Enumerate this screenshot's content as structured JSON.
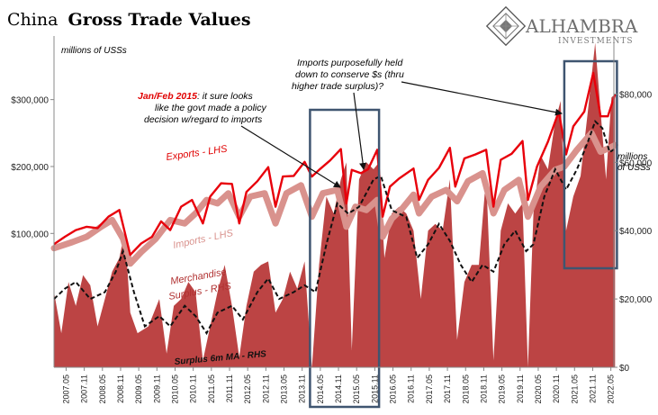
{
  "header": {
    "title_prefix": "China",
    "title_main": "Gross Trade Values",
    "title_prefix_color": "#1f2a6b",
    "title_main_color": "#e00000"
  },
  "brand": {
    "name": "ALHAMBRA",
    "tagline": "INVESTMENTS",
    "logo_icon": "diamond-lattice-icon"
  },
  "annotations": {
    "units_left": "millions of USSs",
    "units_right_line1": "millions",
    "units_right_line2": "of USSs",
    "jan_feb_bold": "Jan/Feb 2015",
    "jan_feb_rest1": ": it sure looks",
    "jan_feb_rest2": "like the govt made a policy",
    "jan_feb_rest3": "decision w/regard to imports",
    "imports_held_line1": "Imports purposefully held",
    "imports_held_line2": "down to conserve $s (thru",
    "imports_held_line3": "higher trade surplus)?",
    "exports_label": "Exports - LHS",
    "imports_label": "Imports - LHS",
    "merch_line1": "Merchandise",
    "merch_line2": "Surplus - RHS",
    "surplus_ma_label": "Surplus 6m MA - RHS"
  },
  "chart_data": {
    "type": "line",
    "x_tick_labels": [
      "2007.05",
      "2007.11",
      "2008.05",
      "2008.11",
      "2009.05",
      "2009.11",
      "2010.05",
      "2010.11",
      "2011.05",
      "2011.11",
      "2012.05",
      "2012.11",
      "2013.05",
      "2013.11",
      "2014.05",
      "2014.11",
      "2015.05",
      "2015.11",
      "2016.05",
      "2016.11",
      "2017.05",
      "2017.11",
      "2018.05",
      "2018.11",
      "2019.05",
      "2019.11",
      "2020.05",
      "2020.11",
      "2021.05",
      "2021.11",
      "2022.05"
    ],
    "x_range": [
      "2007.01",
      "2022.06"
    ],
    "y_left": {
      "label": "millions of USSs",
      "ticks": [
        100000,
        200000,
        300000
      ],
      "tick_labels": [
        "$100,000",
        "$200,000",
        "$300,000"
      ],
      "range": [
        -100000,
        395000
      ]
    },
    "y_right": {
      "label": "millions of USSs",
      "ticks": [
        0,
        20000,
        40000,
        60000,
        80000
      ],
      "tick_labels": [
        "$0",
        "$20,000",
        "$40,000",
        "$60,000",
        "$80,000"
      ],
      "range": [
        0,
        97000
      ]
    },
    "series": [
      {
        "name": "Exports - LHS",
        "axis": "left",
        "color": "#e8000b",
        "style": "line",
        "points": [
          [
            2007.0,
            84000
          ],
          [
            2007.3,
            95000
          ],
          [
            2007.6,
            105000
          ],
          [
            2007.9,
            110000
          ],
          [
            2008.2,
            108000
          ],
          [
            2008.5,
            125000
          ],
          [
            2008.8,
            135000
          ],
          [
            2009.1,
            68000
          ],
          [
            2009.4,
            85000
          ],
          [
            2009.7,
            95000
          ],
          [
            2009.95,
            118000
          ],
          [
            2010.2,
            105000
          ],
          [
            2010.5,
            140000
          ],
          [
            2010.8,
            150000
          ],
          [
            2011.1,
            115000
          ],
          [
            2011.3,
            155000
          ],
          [
            2011.6,
            175000
          ],
          [
            2011.9,
            174000
          ],
          [
            2012.1,
            115000
          ],
          [
            2012.3,
            162000
          ],
          [
            2012.6,
            178000
          ],
          [
            2012.9,
            199000
          ],
          [
            2013.1,
            140000
          ],
          [
            2013.3,
            185000
          ],
          [
            2013.6,
            186000
          ],
          [
            2013.9,
            207000
          ],
          [
            2014.1,
            185000
          ],
          [
            2014.3,
            195000
          ],
          [
            2014.6,
            209000
          ],
          [
            2014.9,
            226000
          ],
          [
            2015.05,
            145000
          ],
          [
            2015.2,
            195000
          ],
          [
            2015.45,
            190000
          ],
          [
            2015.65,
            196000
          ],
          [
            2015.9,
            225000
          ],
          [
            2016.05,
            125000
          ],
          [
            2016.25,
            170000
          ],
          [
            2016.5,
            182000
          ],
          [
            2016.9,
            197000
          ],
          [
            2017.05,
            150000
          ],
          [
            2017.3,
            180000
          ],
          [
            2017.6,
            198000
          ],
          [
            2017.9,
            228000
          ],
          [
            2018.05,
            170000
          ],
          [
            2018.3,
            212000
          ],
          [
            2018.6,
            218000
          ],
          [
            2018.9,
            225000
          ],
          [
            2019.1,
            140000
          ],
          [
            2019.3,
            210000
          ],
          [
            2019.6,
            219000
          ],
          [
            2019.9,
            238000
          ],
          [
            2020.05,
            150000
          ],
          [
            2020.3,
            200000
          ],
          [
            2020.6,
            237000
          ],
          [
            2020.9,
            282000
          ],
          [
            2021.1,
            218000
          ],
          [
            2021.3,
            260000
          ],
          [
            2021.6,
            282000
          ],
          [
            2021.85,
            340000
          ],
          [
            2022.05,
            275000
          ],
          [
            2022.25,
            275000
          ],
          [
            2022.45,
            308000
          ]
        ]
      },
      {
        "name": "Imports - LHS",
        "axis": "left",
        "color": "#d9928d",
        "style": "thick",
        "points": [
          [
            2007.0,
            78000
          ],
          [
            2007.5,
            87000
          ],
          [
            2007.9,
            95000
          ],
          [
            2008.3,
            110000
          ],
          [
            2008.6,
            120000
          ],
          [
            2008.9,
            92000
          ],
          [
            2009.1,
            55000
          ],
          [
            2009.4,
            72000
          ],
          [
            2009.8,
            92000
          ],
          [
            2010.2,
            120000
          ],
          [
            2010.6,
            115000
          ],
          [
            2010.9,
            130000
          ],
          [
            2011.2,
            150000
          ],
          [
            2011.5,
            145000
          ],
          [
            2011.8,
            160000
          ],
          [
            2012.1,
            125000
          ],
          [
            2012.4,
            155000
          ],
          [
            2012.8,
            160000
          ],
          [
            2013.1,
            115000
          ],
          [
            2013.4,
            160000
          ],
          [
            2013.8,
            172000
          ],
          [
            2014.1,
            125000
          ],
          [
            2014.4,
            160000
          ],
          [
            2014.8,
            165000
          ],
          [
            2015.05,
            110000
          ],
          [
            2015.3,
            140000
          ],
          [
            2015.6,
            135000
          ],
          [
            2015.9,
            150000
          ],
          [
            2016.05,
            95000
          ],
          [
            2016.3,
            122000
          ],
          [
            2016.6,
            138000
          ],
          [
            2016.9,
            158000
          ],
          [
            2017.05,
            130000
          ],
          [
            2017.4,
            155000
          ],
          [
            2017.8,
            165000
          ],
          [
            2018.1,
            148000
          ],
          [
            2018.4,
            178000
          ],
          [
            2018.8,
            190000
          ],
          [
            2019.1,
            130000
          ],
          [
            2019.4,
            165000
          ],
          [
            2019.8,
            180000
          ],
          [
            2020.05,
            125000
          ],
          [
            2020.4,
            170000
          ],
          [
            2020.8,
            195000
          ],
          [
            2021.05,
            200000
          ],
          [
            2021.4,
            225000
          ],
          [
            2021.8,
            250000
          ],
          [
            2022.05,
            222000
          ],
          [
            2022.3,
            228000
          ],
          [
            2022.45,
            232000
          ]
        ]
      },
      {
        "name": "Merchandise Surplus - RHS",
        "axis": "right",
        "color": "#b83a3a",
        "style": "area",
        "points": [
          [
            2007.0,
            22000
          ],
          [
            2007.2,
            10000
          ],
          [
            2007.4,
            25000
          ],
          [
            2007.6,
            18000
          ],
          [
            2007.8,
            27000
          ],
          [
            2008.0,
            24000
          ],
          [
            2008.2,
            12000
          ],
          [
            2008.4,
            20000
          ],
          [
            2008.6,
            28000
          ],
          [
            2008.8,
            32000
          ],
          [
            2008.95,
            40000
          ],
          [
            2009.1,
            16000
          ],
          [
            2009.3,
            10000
          ],
          [
            2009.6,
            12000
          ],
          [
            2009.9,
            20000
          ],
          [
            2010.1,
            4000
          ],
          [
            2010.3,
            18000
          ],
          [
            2010.5,
            20000
          ],
          [
            2010.7,
            25000
          ],
          [
            2010.9,
            22000
          ],
          [
            2011.1,
            2000
          ],
          [
            2011.3,
            12000
          ],
          [
            2011.5,
            22000
          ],
          [
            2011.7,
            30000
          ],
          [
            2011.9,
            18000
          ],
          [
            2012.1,
            3000
          ],
          [
            2012.3,
            18000
          ],
          [
            2012.5,
            28000
          ],
          [
            2012.7,
            30000
          ],
          [
            2012.9,
            31000
          ],
          [
            2013.1,
            16000
          ],
          [
            2013.3,
            20000
          ],
          [
            2013.5,
            28000
          ],
          [
            2013.7,
            23000
          ],
          [
            2013.9,
            31000
          ],
          [
            2014.1,
            -200
          ],
          [
            2014.3,
            30000
          ],
          [
            2014.5,
            50000
          ],
          [
            2014.7,
            45000
          ],
          [
            2014.9,
            55000
          ],
          [
            2015.05,
            60000
          ],
          [
            2015.2,
            5000
          ],
          [
            2015.4,
            55000
          ],
          [
            2015.6,
            60000
          ],
          [
            2015.8,
            58000
          ],
          [
            2015.95,
            60000
          ],
          [
            2016.1,
            32000
          ],
          [
            2016.3,
            45000
          ],
          [
            2016.5,
            47000
          ],
          [
            2016.7,
            45000
          ],
          [
            2016.9,
            40000
          ],
          [
            2017.1,
            20000
          ],
          [
            2017.3,
            40000
          ],
          [
            2017.5,
            42000
          ],
          [
            2017.7,
            40000
          ],
          [
            2017.9,
            55000
          ],
          [
            2018.1,
            8000
          ],
          [
            2018.3,
            25000
          ],
          [
            2018.5,
            30000
          ],
          [
            2018.7,
            30000
          ],
          [
            2018.9,
            56000
          ],
          [
            2019.1,
            2000
          ],
          [
            2019.3,
            40000
          ],
          [
            2019.5,
            48000
          ],
          [
            2019.7,
            45000
          ],
          [
            2019.9,
            48000
          ],
          [
            2020.05,
            0
          ],
          [
            2020.2,
            45000
          ],
          [
            2020.4,
            62000
          ],
          [
            2020.6,
            58000
          ],
          [
            2020.8,
            72000
          ],
          [
            2020.95,
            78000
          ],
          [
            2021.1,
            40000
          ],
          [
            2021.3,
            50000
          ],
          [
            2021.5,
            56000
          ],
          [
            2021.7,
            75000
          ],
          [
            2021.9,
            95000
          ],
          [
            2022.05,
            75000
          ],
          [
            2022.2,
            55000
          ],
          [
            2022.35,
            79000
          ],
          [
            2022.45,
            80000
          ]
        ]
      },
      {
        "name": "Surplus 6m MA - RHS",
        "axis": "right",
        "color": "#111111",
        "style": "dashed",
        "points": [
          [
            2007.0,
            20000
          ],
          [
            2007.3,
            23000
          ],
          [
            2007.6,
            25000
          ],
          [
            2008.0,
            20000
          ],
          [
            2008.4,
            22000
          ],
          [
            2008.7,
            28000
          ],
          [
            2008.9,
            34000
          ],
          [
            2009.2,
            22000
          ],
          [
            2009.5,
            12000
          ],
          [
            2009.9,
            15000
          ],
          [
            2010.2,
            12000
          ],
          [
            2010.6,
            18000
          ],
          [
            2010.9,
            15000
          ],
          [
            2011.2,
            10000
          ],
          [
            2011.5,
            16000
          ],
          [
            2011.9,
            18000
          ],
          [
            2012.2,
            14000
          ],
          [
            2012.6,
            22000
          ],
          [
            2012.9,
            26000
          ],
          [
            2013.2,
            20000
          ],
          [
            2013.6,
            22000
          ],
          [
            2013.9,
            24000
          ],
          [
            2014.2,
            22000
          ],
          [
            2014.5,
            36000
          ],
          [
            2014.8,
            48000
          ],
          [
            2015.1,
            45000
          ],
          [
            2015.4,
            47000
          ],
          [
            2015.8,
            55000
          ],
          [
            2016.0,
            56000
          ],
          [
            2016.3,
            46000
          ],
          [
            2016.7,
            44000
          ],
          [
            2017.0,
            32000
          ],
          [
            2017.3,
            36000
          ],
          [
            2017.6,
            42000
          ],
          [
            2017.9,
            37000
          ],
          [
            2018.2,
            30000
          ],
          [
            2018.5,
            25000
          ],
          [
            2018.8,
            30000
          ],
          [
            2019.1,
            28000
          ],
          [
            2019.4,
            36000
          ],
          [
            2019.7,
            40000
          ],
          [
            2020.0,
            34000
          ],
          [
            2020.2,
            36000
          ],
          [
            2020.5,
            50000
          ],
          [
            2020.8,
            58000
          ],
          [
            2021.1,
            52000
          ],
          [
            2021.4,
            58000
          ],
          [
            2021.7,
            66000
          ],
          [
            2021.9,
            72000
          ],
          [
            2022.1,
            70000
          ],
          [
            2022.3,
            63000
          ],
          [
            2022.45,
            64000
          ]
        ]
      }
    ],
    "highlight_boxes": [
      {
        "x_from": 2014.05,
        "x_to": 2015.95,
        "color": "#3f5570"
      },
      {
        "x_from": 2021.05,
        "x_to": 2022.5,
        "color": "#3f5570"
      }
    ],
    "grid": false,
    "legend": "inline annotations"
  }
}
